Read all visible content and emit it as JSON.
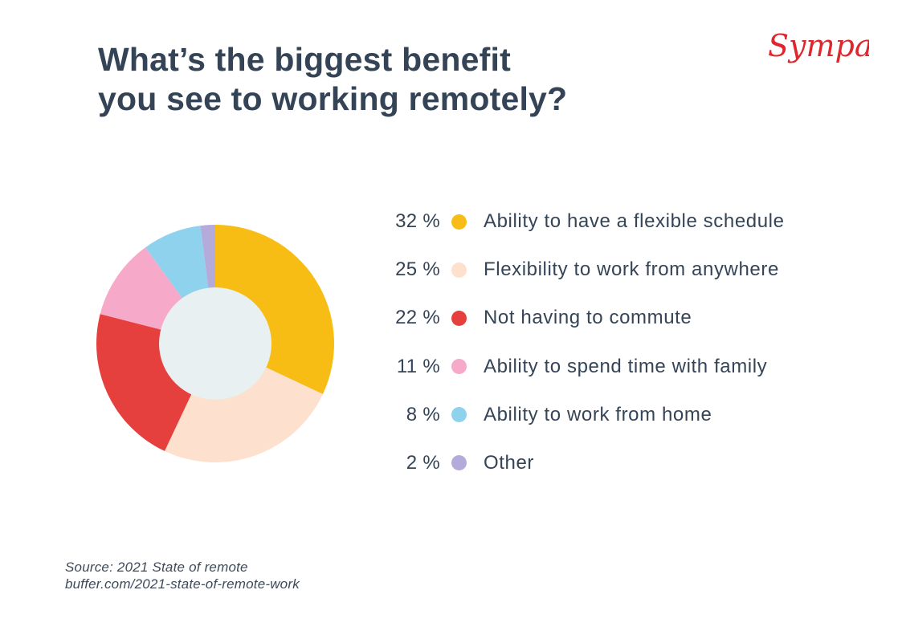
{
  "title": {
    "line1": "What’s the biggest benefit",
    "line2": "you see to working remotely?"
  },
  "logo": {
    "text": "Sympa",
    "color": "#e0262d"
  },
  "legend": [
    {
      "pct": "32 %",
      "label": "Ability to have a flexible schedule",
      "color": "#f8bd15"
    },
    {
      "pct": "25 %",
      "label": "Flexibility to work from anywhere",
      "color": "#fde0cd"
    },
    {
      "pct": "22 %",
      "label": "Not having to commute",
      "color": "#e5403d"
    },
    {
      "pct": "11 %",
      "label": "Ability to spend time with family",
      "color": "#f6a9c8"
    },
    {
      "pct": "8 %",
      "label": "Ability to work from home",
      "color": "#8fd2ee"
    },
    {
      "pct": "2 %",
      "label": "Other",
      "color": "#b5abdb"
    }
  ],
  "source": {
    "line1": "Source: 2021 State of remote",
    "line2": "buffer.com/2021-state-of-remote-work"
  },
  "chart_data": {
    "type": "pie",
    "variant": "donut",
    "title": "What’s the biggest benefit you see to working remotely?",
    "categories": [
      "Ability to have a flexible schedule",
      "Flexibility to work from anywhere",
      "Not having to commute",
      "Ability to spend time with family",
      "Ability to work from home",
      "Other"
    ],
    "values": [
      32,
      25,
      22,
      11,
      8,
      2
    ],
    "unit": "%",
    "colors": [
      "#f8bd15",
      "#fde0cd",
      "#e5403d",
      "#f6a9c8",
      "#8fd2ee",
      "#b5abdb"
    ],
    "hole_color": "#e8f0f1",
    "start_angle_deg": 0,
    "direction": "clockwise",
    "legend_position": "right",
    "source": "Source: 2021 State of remote — buffer.com/2021-state-of-remote-work"
  }
}
